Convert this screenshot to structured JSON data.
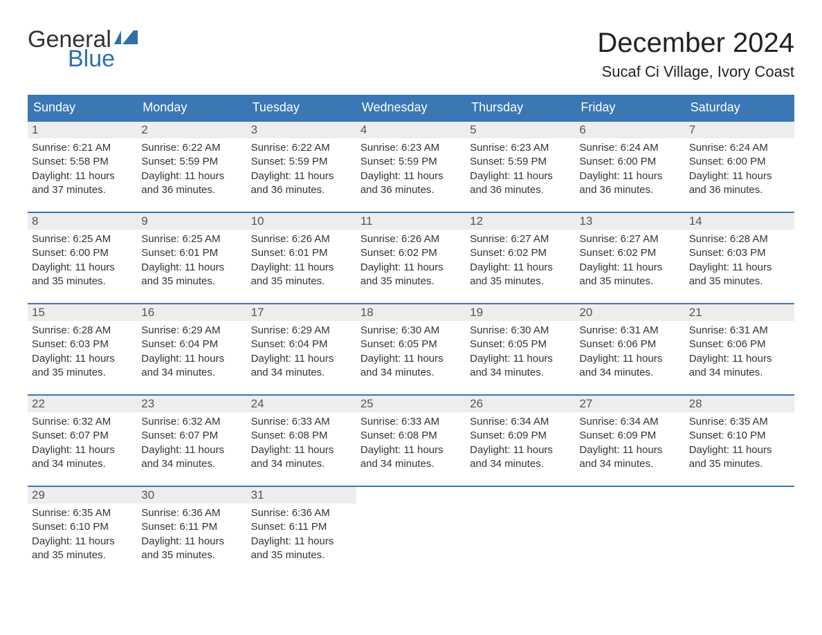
{
  "brand": {
    "word1": "General",
    "word2": "Blue",
    "word1_color": "#333333",
    "word2_color": "#2f6fab",
    "flag_color": "#2f6fab"
  },
  "title": "December 2024",
  "location": "Sucaf Ci Village, Ivory Coast",
  "colors": {
    "header_bg": "#3a77b5",
    "header_text": "#ffffff",
    "daynum_bg": "#ededed",
    "daynum_text": "#555555",
    "body_text": "#333333",
    "row_border": "#3a77b5",
    "page_bg": "#ffffff"
  },
  "typography": {
    "title_fontsize": 40,
    "location_fontsize": 22,
    "header_fontsize": 18,
    "daynum_fontsize": 17,
    "body_fontsize": 15
  },
  "day_headers": [
    "Sunday",
    "Monday",
    "Tuesday",
    "Wednesday",
    "Thursday",
    "Friday",
    "Saturday"
  ],
  "weeks": [
    [
      {
        "n": "1",
        "sr": "Sunrise: 6:21 AM",
        "ss": "Sunset: 5:58 PM",
        "d1": "Daylight: 11 hours",
        "d2": "and 37 minutes."
      },
      {
        "n": "2",
        "sr": "Sunrise: 6:22 AM",
        "ss": "Sunset: 5:59 PM",
        "d1": "Daylight: 11 hours",
        "d2": "and 36 minutes."
      },
      {
        "n": "3",
        "sr": "Sunrise: 6:22 AM",
        "ss": "Sunset: 5:59 PM",
        "d1": "Daylight: 11 hours",
        "d2": "and 36 minutes."
      },
      {
        "n": "4",
        "sr": "Sunrise: 6:23 AM",
        "ss": "Sunset: 5:59 PM",
        "d1": "Daylight: 11 hours",
        "d2": "and 36 minutes."
      },
      {
        "n": "5",
        "sr": "Sunrise: 6:23 AM",
        "ss": "Sunset: 5:59 PM",
        "d1": "Daylight: 11 hours",
        "d2": "and 36 minutes."
      },
      {
        "n": "6",
        "sr": "Sunrise: 6:24 AM",
        "ss": "Sunset: 6:00 PM",
        "d1": "Daylight: 11 hours",
        "d2": "and 36 minutes."
      },
      {
        "n": "7",
        "sr": "Sunrise: 6:24 AM",
        "ss": "Sunset: 6:00 PM",
        "d1": "Daylight: 11 hours",
        "d2": "and 36 minutes."
      }
    ],
    [
      {
        "n": "8",
        "sr": "Sunrise: 6:25 AM",
        "ss": "Sunset: 6:00 PM",
        "d1": "Daylight: 11 hours",
        "d2": "and 35 minutes."
      },
      {
        "n": "9",
        "sr": "Sunrise: 6:25 AM",
        "ss": "Sunset: 6:01 PM",
        "d1": "Daylight: 11 hours",
        "d2": "and 35 minutes."
      },
      {
        "n": "10",
        "sr": "Sunrise: 6:26 AM",
        "ss": "Sunset: 6:01 PM",
        "d1": "Daylight: 11 hours",
        "d2": "and 35 minutes."
      },
      {
        "n": "11",
        "sr": "Sunrise: 6:26 AM",
        "ss": "Sunset: 6:02 PM",
        "d1": "Daylight: 11 hours",
        "d2": "and 35 minutes."
      },
      {
        "n": "12",
        "sr": "Sunrise: 6:27 AM",
        "ss": "Sunset: 6:02 PM",
        "d1": "Daylight: 11 hours",
        "d2": "and 35 minutes."
      },
      {
        "n": "13",
        "sr": "Sunrise: 6:27 AM",
        "ss": "Sunset: 6:02 PM",
        "d1": "Daylight: 11 hours",
        "d2": "and 35 minutes."
      },
      {
        "n": "14",
        "sr": "Sunrise: 6:28 AM",
        "ss": "Sunset: 6:03 PM",
        "d1": "Daylight: 11 hours",
        "d2": "and 35 minutes."
      }
    ],
    [
      {
        "n": "15",
        "sr": "Sunrise: 6:28 AM",
        "ss": "Sunset: 6:03 PM",
        "d1": "Daylight: 11 hours",
        "d2": "and 35 minutes."
      },
      {
        "n": "16",
        "sr": "Sunrise: 6:29 AM",
        "ss": "Sunset: 6:04 PM",
        "d1": "Daylight: 11 hours",
        "d2": "and 34 minutes."
      },
      {
        "n": "17",
        "sr": "Sunrise: 6:29 AM",
        "ss": "Sunset: 6:04 PM",
        "d1": "Daylight: 11 hours",
        "d2": "and 34 minutes."
      },
      {
        "n": "18",
        "sr": "Sunrise: 6:30 AM",
        "ss": "Sunset: 6:05 PM",
        "d1": "Daylight: 11 hours",
        "d2": "and 34 minutes."
      },
      {
        "n": "19",
        "sr": "Sunrise: 6:30 AM",
        "ss": "Sunset: 6:05 PM",
        "d1": "Daylight: 11 hours",
        "d2": "and 34 minutes."
      },
      {
        "n": "20",
        "sr": "Sunrise: 6:31 AM",
        "ss": "Sunset: 6:06 PM",
        "d1": "Daylight: 11 hours",
        "d2": "and 34 minutes."
      },
      {
        "n": "21",
        "sr": "Sunrise: 6:31 AM",
        "ss": "Sunset: 6:06 PM",
        "d1": "Daylight: 11 hours",
        "d2": "and 34 minutes."
      }
    ],
    [
      {
        "n": "22",
        "sr": "Sunrise: 6:32 AM",
        "ss": "Sunset: 6:07 PM",
        "d1": "Daylight: 11 hours",
        "d2": "and 34 minutes."
      },
      {
        "n": "23",
        "sr": "Sunrise: 6:32 AM",
        "ss": "Sunset: 6:07 PM",
        "d1": "Daylight: 11 hours",
        "d2": "and 34 minutes."
      },
      {
        "n": "24",
        "sr": "Sunrise: 6:33 AM",
        "ss": "Sunset: 6:08 PM",
        "d1": "Daylight: 11 hours",
        "d2": "and 34 minutes."
      },
      {
        "n": "25",
        "sr": "Sunrise: 6:33 AM",
        "ss": "Sunset: 6:08 PM",
        "d1": "Daylight: 11 hours",
        "d2": "and 34 minutes."
      },
      {
        "n": "26",
        "sr": "Sunrise: 6:34 AM",
        "ss": "Sunset: 6:09 PM",
        "d1": "Daylight: 11 hours",
        "d2": "and 34 minutes."
      },
      {
        "n": "27",
        "sr": "Sunrise: 6:34 AM",
        "ss": "Sunset: 6:09 PM",
        "d1": "Daylight: 11 hours",
        "d2": "and 34 minutes."
      },
      {
        "n": "28",
        "sr": "Sunrise: 6:35 AM",
        "ss": "Sunset: 6:10 PM",
        "d1": "Daylight: 11 hours",
        "d2": "and 35 minutes."
      }
    ],
    [
      {
        "n": "29",
        "sr": "Sunrise: 6:35 AM",
        "ss": "Sunset: 6:10 PM",
        "d1": "Daylight: 11 hours",
        "d2": "and 35 minutes."
      },
      {
        "n": "30",
        "sr": "Sunrise: 6:36 AM",
        "ss": "Sunset: 6:11 PM",
        "d1": "Daylight: 11 hours",
        "d2": "and 35 minutes."
      },
      {
        "n": "31",
        "sr": "Sunrise: 6:36 AM",
        "ss": "Sunset: 6:11 PM",
        "d1": "Daylight: 11 hours",
        "d2": "and 35 minutes."
      },
      {
        "empty": true
      },
      {
        "empty": true
      },
      {
        "empty": true
      },
      {
        "empty": true
      }
    ]
  ]
}
